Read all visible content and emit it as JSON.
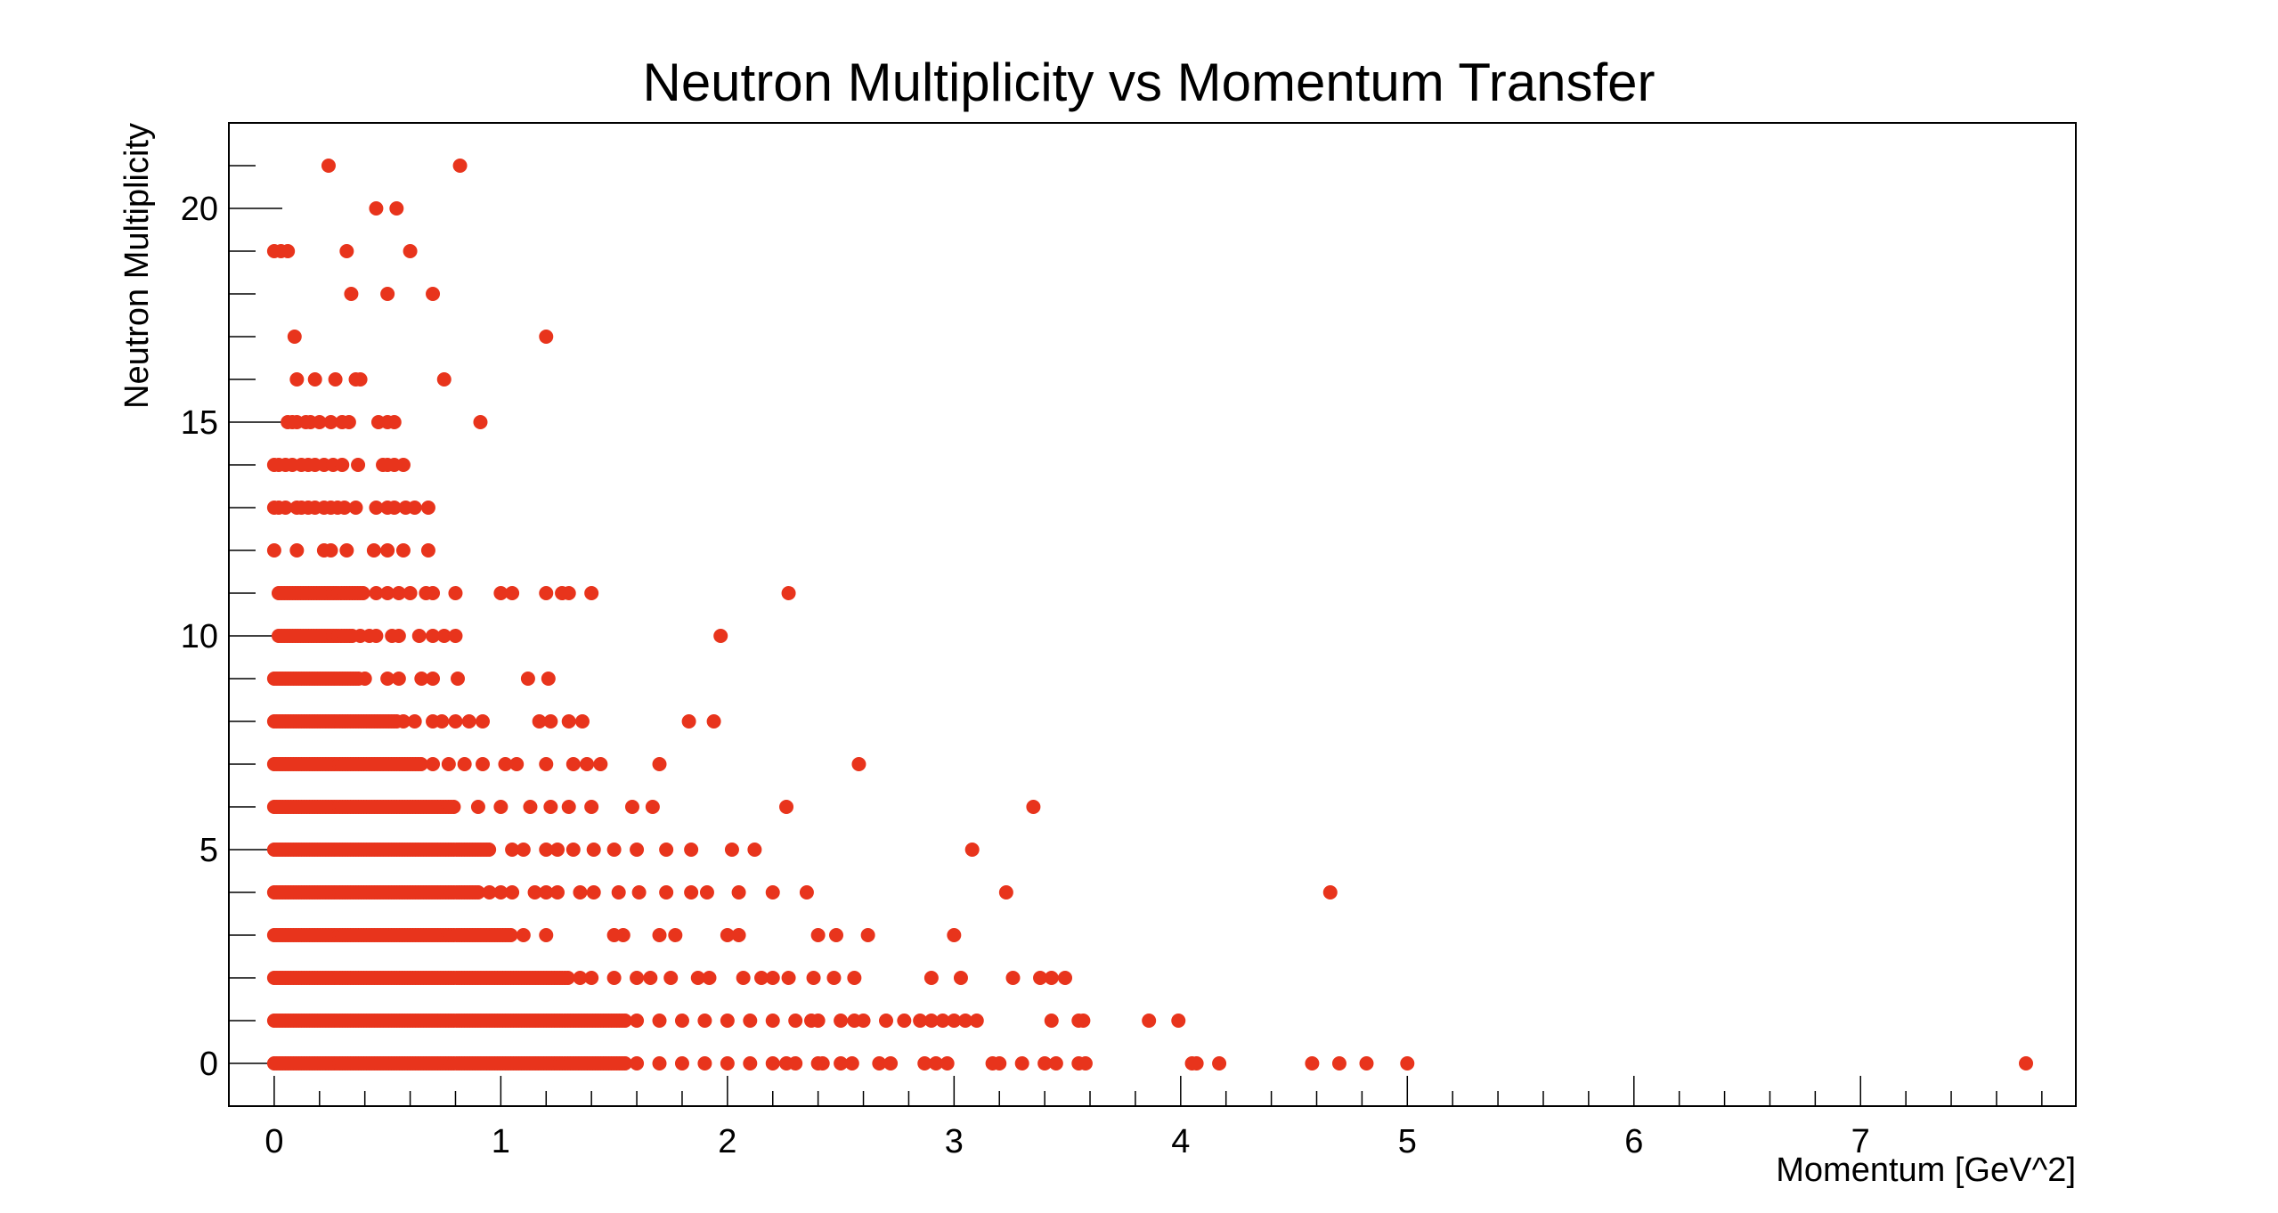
{
  "chart_data": {
    "type": "scatter",
    "title": "Neutron Multiplicity vs Momentum Transfer",
    "xlabel": "Momentum [GeV^2]",
    "ylabel": "Neutron Multiplicity",
    "xlim": [
      -0.2,
      7.95
    ],
    "ylim": [
      -1,
      22
    ],
    "xticks": [
      0,
      1,
      2,
      3,
      4,
      5,
      6,
      7
    ],
    "yticks": [
      0,
      5,
      10,
      15,
      20
    ],
    "grid": false,
    "marker_color": "#e8341c",
    "dense_runs": [
      {
        "y": 0,
        "x_start": 0.0,
        "x_end": 1.55
      },
      {
        "y": 1,
        "x_start": 0.0,
        "x_end": 1.55
      },
      {
        "y": 2,
        "x_start": 0.0,
        "x_end": 1.3
      },
      {
        "y": 3,
        "x_start": 0.0,
        "x_end": 1.05
      },
      {
        "y": 4,
        "x_start": 0.0,
        "x_end": 0.9
      },
      {
        "y": 5,
        "x_start": 0.0,
        "x_end": 0.95
      },
      {
        "y": 6,
        "x_start": 0.0,
        "x_end": 0.8
      },
      {
        "y": 7,
        "x_start": 0.0,
        "x_end": 0.65
      },
      {
        "y": 8,
        "x_start": 0.0,
        "x_end": 0.55
      },
      {
        "y": 9,
        "x_start": 0.0,
        "x_end": 0.38
      },
      {
        "y": 10,
        "x_start": 0.02,
        "x_end": 0.35
      },
      {
        "y": 11,
        "x_start": 0.02,
        "x_end": 0.4
      }
    ],
    "points": [
      [
        1.6,
        0
      ],
      [
        1.7,
        0
      ],
      [
        1.8,
        0
      ],
      [
        1.9,
        0
      ],
      [
        2.0,
        0
      ],
      [
        2.1,
        0
      ],
      [
        2.2,
        0
      ],
      [
        2.26,
        0
      ],
      [
        2.3,
        0
      ],
      [
        2.4,
        0
      ],
      [
        2.42,
        0
      ],
      [
        2.5,
        0
      ],
      [
        2.55,
        0
      ],
      [
        2.67,
        0
      ],
      [
        2.72,
        0
      ],
      [
        2.87,
        0
      ],
      [
        2.92,
        0
      ],
      [
        2.97,
        0
      ],
      [
        3.17,
        0
      ],
      [
        3.2,
        0
      ],
      [
        3.3,
        0
      ],
      [
        3.4,
        0
      ],
      [
        3.45,
        0
      ],
      [
        3.55,
        0
      ],
      [
        3.58,
        0
      ],
      [
        4.05,
        0
      ],
      [
        4.07,
        0
      ],
      [
        4.17,
        0
      ],
      [
        4.58,
        0
      ],
      [
        4.7,
        0
      ],
      [
        4.82,
        0
      ],
      [
        5.0,
        0
      ],
      [
        7.73,
        0
      ],
      [
        1.6,
        1
      ],
      [
        1.7,
        1
      ],
      [
        1.8,
        1
      ],
      [
        1.9,
        1
      ],
      [
        2.0,
        1
      ],
      [
        2.1,
        1
      ],
      [
        2.2,
        1
      ],
      [
        2.3,
        1
      ],
      [
        2.37,
        1
      ],
      [
        2.4,
        1
      ],
      [
        2.5,
        1
      ],
      [
        2.56,
        1
      ],
      [
        2.6,
        1
      ],
      [
        2.7,
        1
      ],
      [
        2.78,
        1
      ],
      [
        2.85,
        1
      ],
      [
        2.9,
        1
      ],
      [
        2.95,
        1
      ],
      [
        3.0,
        1
      ],
      [
        3.05,
        1
      ],
      [
        3.1,
        1
      ],
      [
        3.43,
        1
      ],
      [
        3.55,
        1
      ],
      [
        3.57,
        1
      ],
      [
        3.86,
        1
      ],
      [
        3.99,
        1
      ],
      [
        1.35,
        2
      ],
      [
        1.4,
        2
      ],
      [
        1.5,
        2
      ],
      [
        1.6,
        2
      ],
      [
        1.66,
        2
      ],
      [
        1.75,
        2
      ],
      [
        1.87,
        2
      ],
      [
        1.92,
        2
      ],
      [
        2.07,
        2
      ],
      [
        2.15,
        2
      ],
      [
        2.2,
        2
      ],
      [
        2.27,
        2
      ],
      [
        2.38,
        2
      ],
      [
        2.47,
        2
      ],
      [
        2.56,
        2
      ],
      [
        2.9,
        2
      ],
      [
        3.03,
        2
      ],
      [
        3.26,
        2
      ],
      [
        3.38,
        2
      ],
      [
        3.43,
        2
      ],
      [
        3.49,
        2
      ],
      [
        1.1,
        3
      ],
      [
        1.2,
        3
      ],
      [
        1.5,
        3
      ],
      [
        1.54,
        3
      ],
      [
        1.7,
        3
      ],
      [
        1.77,
        3
      ],
      [
        2.0,
        3
      ],
      [
        2.05,
        3
      ],
      [
        2.4,
        3
      ],
      [
        2.48,
        3
      ],
      [
        2.62,
        3
      ],
      [
        3.0,
        3
      ],
      [
        0.95,
        4
      ],
      [
        1.0,
        4
      ],
      [
        1.05,
        4
      ],
      [
        1.15,
        4
      ],
      [
        1.2,
        4
      ],
      [
        1.25,
        4
      ],
      [
        1.35,
        4
      ],
      [
        1.41,
        4
      ],
      [
        1.52,
        4
      ],
      [
        1.61,
        4
      ],
      [
        1.73,
        4
      ],
      [
        1.84,
        4
      ],
      [
        1.91,
        4
      ],
      [
        2.05,
        4
      ],
      [
        2.2,
        4
      ],
      [
        2.35,
        4
      ],
      [
        3.23,
        4
      ],
      [
        4.66,
        4
      ],
      [
        1.05,
        5
      ],
      [
        1.1,
        5
      ],
      [
        1.2,
        5
      ],
      [
        1.25,
        5
      ],
      [
        1.32,
        5
      ],
      [
        1.41,
        5
      ],
      [
        1.5,
        5
      ],
      [
        1.6,
        5
      ],
      [
        1.73,
        5
      ],
      [
        1.84,
        5
      ],
      [
        2.02,
        5
      ],
      [
        2.12,
        5
      ],
      [
        3.08,
        5
      ],
      [
        0.9,
        6
      ],
      [
        1.0,
        6
      ],
      [
        1.13,
        6
      ],
      [
        1.22,
        6
      ],
      [
        1.3,
        6
      ],
      [
        1.4,
        6
      ],
      [
        1.58,
        6
      ],
      [
        1.67,
        6
      ],
      [
        2.26,
        6
      ],
      [
        3.35,
        6
      ],
      [
        0.7,
        7
      ],
      [
        0.77,
        7
      ],
      [
        0.84,
        7
      ],
      [
        0.92,
        7
      ],
      [
        1.02,
        7
      ],
      [
        1.07,
        7
      ],
      [
        1.2,
        7
      ],
      [
        1.32,
        7
      ],
      [
        1.38,
        7
      ],
      [
        1.44,
        7
      ],
      [
        1.7,
        7
      ],
      [
        2.58,
        7
      ],
      [
        0.57,
        8
      ],
      [
        0.62,
        8
      ],
      [
        0.7,
        8
      ],
      [
        0.74,
        8
      ],
      [
        0.8,
        8
      ],
      [
        0.86,
        8
      ],
      [
        0.92,
        8
      ],
      [
        1.17,
        8
      ],
      [
        1.22,
        8
      ],
      [
        1.3,
        8
      ],
      [
        1.36,
        8
      ],
      [
        1.83,
        8
      ],
      [
        1.94,
        8
      ],
      [
        0.4,
        9
      ],
      [
        0.5,
        9
      ],
      [
        0.55,
        9
      ],
      [
        0.65,
        9
      ],
      [
        0.7,
        9
      ],
      [
        0.81,
        9
      ],
      [
        1.12,
        9
      ],
      [
        1.21,
        9
      ],
      [
        0.38,
        10
      ],
      [
        0.42,
        10
      ],
      [
        0.45,
        10
      ],
      [
        0.52,
        10
      ],
      [
        0.55,
        10
      ],
      [
        0.64,
        10
      ],
      [
        0.7,
        10
      ],
      [
        0.75,
        10
      ],
      [
        0.8,
        10
      ],
      [
        1.97,
        10
      ],
      [
        0.45,
        11
      ],
      [
        0.5,
        11
      ],
      [
        0.55,
        11
      ],
      [
        0.6,
        11
      ],
      [
        0.67,
        11
      ],
      [
        0.7,
        11
      ],
      [
        0.8,
        11
      ],
      [
        1.0,
        11
      ],
      [
        1.05,
        11
      ],
      [
        1.2,
        11
      ],
      [
        1.27,
        11
      ],
      [
        1.3,
        11
      ],
      [
        1.4,
        11
      ],
      [
        2.27,
        11
      ],
      [
        0.0,
        12
      ],
      [
        0.1,
        12
      ],
      [
        0.22,
        12
      ],
      [
        0.25,
        12
      ],
      [
        0.32,
        12
      ],
      [
        0.44,
        12
      ],
      [
        0.5,
        12
      ],
      [
        0.57,
        12
      ],
      [
        0.68,
        12
      ],
      [
        0.0,
        13
      ],
      [
        0.02,
        13
      ],
      [
        0.05,
        13
      ],
      [
        0.1,
        13
      ],
      [
        0.12,
        13
      ],
      [
        0.15,
        13
      ],
      [
        0.18,
        13
      ],
      [
        0.22,
        13
      ],
      [
        0.25,
        13
      ],
      [
        0.28,
        13
      ],
      [
        0.31,
        13
      ],
      [
        0.36,
        13
      ],
      [
        0.45,
        13
      ],
      [
        0.5,
        13
      ],
      [
        0.53,
        13
      ],
      [
        0.58,
        13
      ],
      [
        0.62,
        13
      ],
      [
        0.68,
        13
      ],
      [
        0.0,
        14
      ],
      [
        0.02,
        14
      ],
      [
        0.05,
        14
      ],
      [
        0.08,
        14
      ],
      [
        0.12,
        14
      ],
      [
        0.15,
        14
      ],
      [
        0.18,
        14
      ],
      [
        0.22,
        14
      ],
      [
        0.26,
        14
      ],
      [
        0.3,
        14
      ],
      [
        0.37,
        14
      ],
      [
        0.48,
        14
      ],
      [
        0.5,
        14
      ],
      [
        0.53,
        14
      ],
      [
        0.57,
        14
      ],
      [
        0.06,
        15
      ],
      [
        0.08,
        15
      ],
      [
        0.1,
        15
      ],
      [
        0.14,
        15
      ],
      [
        0.16,
        15
      ],
      [
        0.2,
        15
      ],
      [
        0.25,
        15
      ],
      [
        0.3,
        15
      ],
      [
        0.33,
        15
      ],
      [
        0.46,
        15
      ],
      [
        0.5,
        15
      ],
      [
        0.53,
        15
      ],
      [
        0.91,
        15
      ],
      [
        0.1,
        16
      ],
      [
        0.18,
        16
      ],
      [
        0.27,
        16
      ],
      [
        0.36,
        16
      ],
      [
        0.38,
        16
      ],
      [
        0.75,
        16
      ],
      [
        0.09,
        17
      ],
      [
        1.2,
        17
      ],
      [
        0.34,
        18
      ],
      [
        0.5,
        18
      ],
      [
        0.7,
        18
      ],
      [
        0.0,
        19
      ],
      [
        0.03,
        19
      ],
      [
        0.06,
        19
      ],
      [
        0.32,
        19
      ],
      [
        0.6,
        19
      ],
      [
        0.45,
        20
      ],
      [
        0.54,
        20
      ],
      [
        0.24,
        21
      ],
      [
        0.82,
        21
      ]
    ]
  }
}
